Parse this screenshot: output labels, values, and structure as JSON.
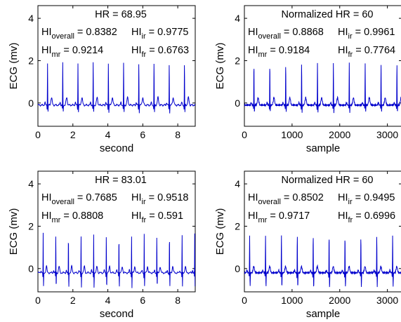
{
  "chart_data": [
    {
      "type": "line",
      "xlabel": "second",
      "ylabel": "ECG (mv)",
      "xlim": [
        0,
        9
      ],
      "ylim": [
        -1.1,
        4.6
      ],
      "xticks": [
        0,
        2,
        4,
        6,
        8
      ],
      "yticks": [
        0,
        2,
        4
      ],
      "ecg": {
        "beats_per_unit": 1.149,
        "first_beat": 0.55,
        "r_peak": 1.9,
        "s_trough": -0.45,
        "t_wave": 0.25,
        "baseline": -0.1
      },
      "annotations": {
        "hr": "HR = 68.95",
        "overall_label": "HI",
        "overall_sub": "overall",
        "overall_value": " = 0.8382",
        "ir_label": "HI",
        "ir_sub": "ir",
        "ir_value": " = 0.9775",
        "mr_label": "HI",
        "mr_sub": "mr",
        "mr_value": " = 0.9214",
        "fr_label": "HI",
        "fr_sub": "fr",
        "fr_value": " = 0.6763"
      }
    },
    {
      "type": "line",
      "xlabel": "sample",
      "ylabel": "ECG (mv)",
      "xlim": [
        0,
        3300
      ],
      "ylim": [
        -1.1,
        4.6
      ],
      "xticks": [
        0,
        1000,
        2000,
        3000
      ],
      "yticks": [
        0,
        2,
        4
      ],
      "ecg": {
        "beats_per_unit": 0.003,
        "first_beat": 200,
        "r_peak": 1.9,
        "s_trough": -0.45,
        "t_wave": 0.25,
        "baseline": -0.1
      },
      "annotations": {
        "hr": "Normalized HR = 60",
        "overall_label": "HI",
        "overall_sub": "overall",
        "overall_value": " = 0.8868",
        "ir_label": "HI",
        "ir_sub": "ir",
        "ir_value": " = 0.9961",
        "mr_label": "HI",
        "mr_sub": "mr",
        "mr_value": " = 0.9184",
        "fr_label": "HI",
        "fr_sub": "fr",
        "fr_value": " = 0.7764"
      }
    },
    {
      "type": "line",
      "xlabel": "second",
      "ylabel": "ECG (mv)",
      "xlim": [
        0,
        9
      ],
      "ylim": [
        -1.1,
        4.6
      ],
      "xticks": [
        0,
        2,
        4,
        6,
        8
      ],
      "yticks": [
        0,
        2,
        4
      ],
      "ecg": {
        "beats_per_unit": 1.384,
        "first_beat": 0.3,
        "r_peak": 1.65,
        "s_trough": -0.9,
        "t_wave": 0.1,
        "baseline": -0.2
      },
      "annotations": {
        "hr": "HR = 83.01",
        "overall_label": "HI",
        "overall_sub": "overall",
        "overall_value": " = 0.7685",
        "ir_label": "HI",
        "ir_sub": "ir",
        "ir_value": " = 0.9518",
        "mr_label": "HI",
        "mr_sub": "mr",
        "mr_value": " = 0.8808",
        "fr_label": "HI",
        "fr_sub": "fr",
        "fr_value": " = 0.591"
      }
    },
    {
      "type": "line",
      "xlabel": "sample",
      "ylabel": "ECG (mv)",
      "xlim": [
        0,
        3300
      ],
      "ylim": [
        -1.1,
        4.6
      ],
      "xticks": [
        0,
        1000,
        2000,
        3000
      ],
      "yticks": [
        0,
        2,
        4
      ],
      "ecg": {
        "beats_per_unit": 0.003,
        "first_beat": 110,
        "r_peak": 1.6,
        "s_trough": -0.9,
        "t_wave": 0.1,
        "baseline": -0.2
      },
      "annotations": {
        "hr": "Normalized HR = 60",
        "overall_label": "HI",
        "overall_sub": "overall",
        "overall_value": " = 0.8502",
        "ir_label": "HI",
        "ir_sub": "ir",
        "ir_value": " = 0.9495",
        "mr_label": "HI",
        "mr_sub": "mr",
        "mr_value": " = 0.9717",
        "fr_label": "HI",
        "fr_sub": "fr",
        "fr_value": " = 0.6996"
      }
    }
  ],
  "style": {
    "line_color": "#0000cc",
    "axis_color": "#000000"
  }
}
